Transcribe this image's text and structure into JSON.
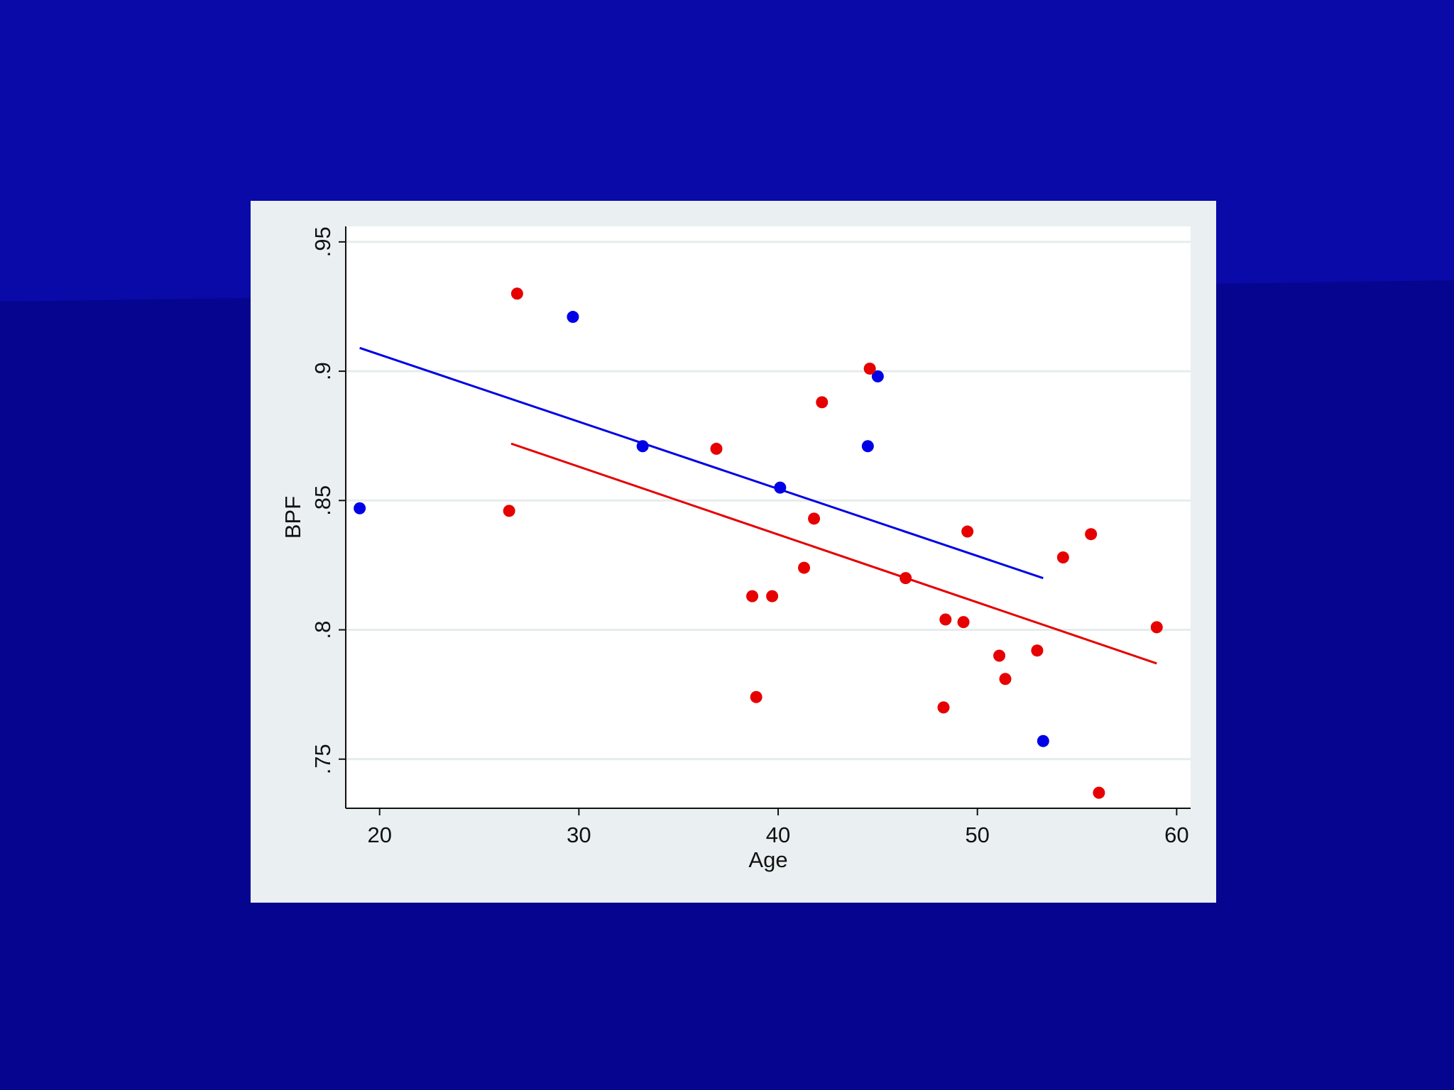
{
  "chart_data": {
    "type": "scatter",
    "title": "",
    "xlabel": "Age",
    "ylabel": "BPF",
    "xlim": [
      18.3,
      60.7
    ],
    "ylim": [
      0.731,
      0.956
    ],
    "x_ticks": [
      20,
      30,
      40,
      50,
      60
    ],
    "x_tick_labels": [
      "20",
      "30",
      "40",
      "50",
      "60"
    ],
    "y_ticks": [
      0.75,
      0.8,
      0.85,
      0.9,
      0.95
    ],
    "y_tick_labels": [
      ".75",
      ".8",
      ".85",
      ".9",
      ".95"
    ],
    "grid": "horizontal",
    "legend": "none",
    "background_color": "#eaf0f1",
    "plot_color": "#ffffff",
    "series": [
      {
        "color": "#0000e6",
        "points": [
          {
            "x": 19.0,
            "y": 0.847
          },
          {
            "x": 29.7,
            "y": 0.921
          },
          {
            "x": 33.2,
            "y": 0.871
          },
          {
            "x": 40.1,
            "y": 0.855
          },
          {
            "x": 44.5,
            "y": 0.871
          },
          {
            "x": 45.0,
            "y": 0.898
          },
          {
            "x": 53.3,
            "y": 0.757
          }
        ],
        "fit_line": {
          "x": [
            19.0,
            53.3
          ],
          "y": [
            0.909,
            0.82
          ]
        }
      },
      {
        "color": "#e60000",
        "points": [
          {
            "x": 26.5,
            "y": 0.846
          },
          {
            "x": 26.9,
            "y": 0.93
          },
          {
            "x": 36.9,
            "y": 0.87
          },
          {
            "x": 38.7,
            "y": 0.813
          },
          {
            "x": 38.9,
            "y": 0.774
          },
          {
            "x": 39.7,
            "y": 0.813
          },
          {
            "x": 41.3,
            "y": 0.824
          },
          {
            "x": 41.8,
            "y": 0.843
          },
          {
            "x": 42.2,
            "y": 0.888
          },
          {
            "x": 44.6,
            "y": 0.901
          },
          {
            "x": 46.4,
            "y": 0.82
          },
          {
            "x": 48.3,
            "y": 0.77
          },
          {
            "x": 48.4,
            "y": 0.804
          },
          {
            "x": 49.3,
            "y": 0.803
          },
          {
            "x": 49.5,
            "y": 0.838
          },
          {
            "x": 51.1,
            "y": 0.79
          },
          {
            "x": 51.4,
            "y": 0.781
          },
          {
            "x": 53.0,
            "y": 0.792
          },
          {
            "x": 54.3,
            "y": 0.828
          },
          {
            "x": 55.7,
            "y": 0.837
          },
          {
            "x": 56.1,
            "y": 0.737
          },
          {
            "x": 59.0,
            "y": 0.801
          }
        ],
        "fit_line": {
          "x": [
            26.6,
            59.0
          ],
          "y": [
            0.872,
            0.787
          ]
        }
      }
    ]
  }
}
